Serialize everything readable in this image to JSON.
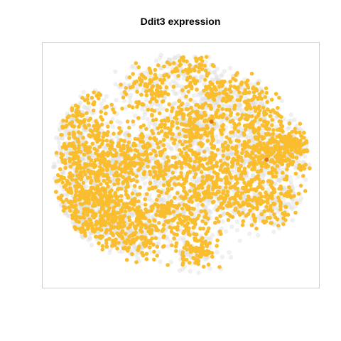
{
  "chart_data": {
    "type": "scatter",
    "title": "Ddit3 expression",
    "xlabel": "",
    "ylabel": "",
    "xlim": [
      -45,
      45
    ],
    "ylim": [
      -45,
      45
    ],
    "grid": false,
    "legend": "none",
    "axes_visible": false,
    "colors": {
      "background_cells": "#dedede",
      "expressing_cells": "#f9bd2e",
      "high_expression": "#e0740f",
      "frame": "#cfcfcf"
    },
    "series": [
      {
        "role": "non-expressing cells",
        "marker_color": "#dedede",
        "approx_point_count": 3000
      },
      {
        "role": "expressing cells",
        "marker_color": "#f9bd2e",
        "approx_point_count": 2600
      },
      {
        "role": "highest expression",
        "marker_color": "#e0740f",
        "points": [
          [
            10,
            16
          ],
          [
            28,
            2
          ]
        ]
      }
    ]
  }
}
